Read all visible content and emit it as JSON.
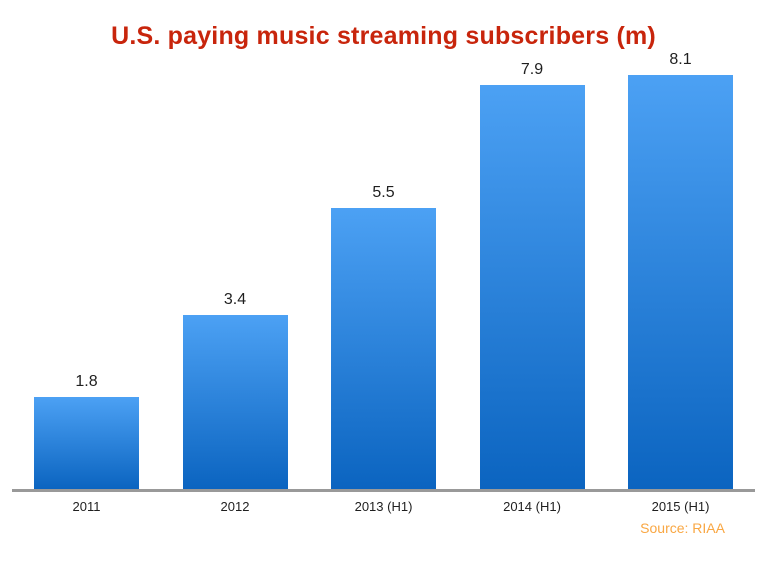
{
  "header": {
    "title": "U.S. paying music streaming subscribers (m)"
  },
  "footer": {
    "source": "Source: RIAA"
  },
  "colors": {
    "title": "#c8250c",
    "bar_top": "#4ca1f4",
    "bar_bottom": "#0b64c0",
    "axis_line": "#999999",
    "value_label": "#1f1f1f",
    "tick_label": "#1f1f1f",
    "source": "#f9a743"
  },
  "chart_data": {
    "type": "bar",
    "title": "U.S. paying music streaming subscribers (m)",
    "categories": [
      "2011",
      "2012",
      "2013 (H1)",
      "2014 (H1)",
      "2015 (H1)"
    ],
    "values": [
      1.8,
      3.4,
      5.5,
      7.9,
      8.1
    ],
    "value_labels": [
      "1.8",
      "3.4",
      "5.5",
      "7.9",
      "8.1"
    ],
    "xlabel": "",
    "ylabel": "",
    "ylim": [
      0,
      8.1
    ],
    "grid": false,
    "legend": false,
    "bar_color_gradient": [
      "#4ca1f4",
      "#0b64c0"
    ],
    "source": "Source: RIAA"
  }
}
